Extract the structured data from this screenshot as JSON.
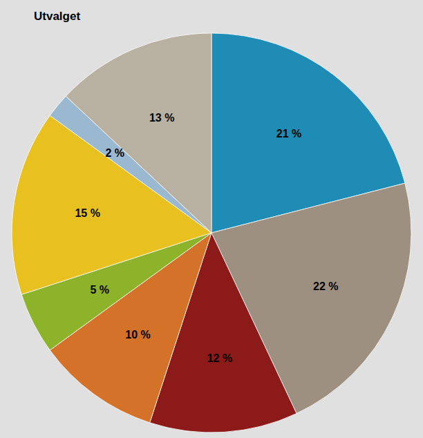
{
  "chart_data": {
    "type": "pie",
    "title": "Utvalget",
    "values": [
      21,
      22,
      12,
      10,
      5,
      15,
      2,
      13
    ],
    "value_labels": [
      "21 %",
      "22 %",
      "12 %",
      "10 %",
      "5 %",
      "15 %",
      "2 %",
      "13 %"
    ],
    "colors": [
      "#1e8cb5",
      "#9e9080",
      "#8b1a18",
      "#d4722a",
      "#8db32a",
      "#e8c020",
      "#9ab8d0",
      "#b8b0a0"
    ],
    "data_labels": true
  }
}
